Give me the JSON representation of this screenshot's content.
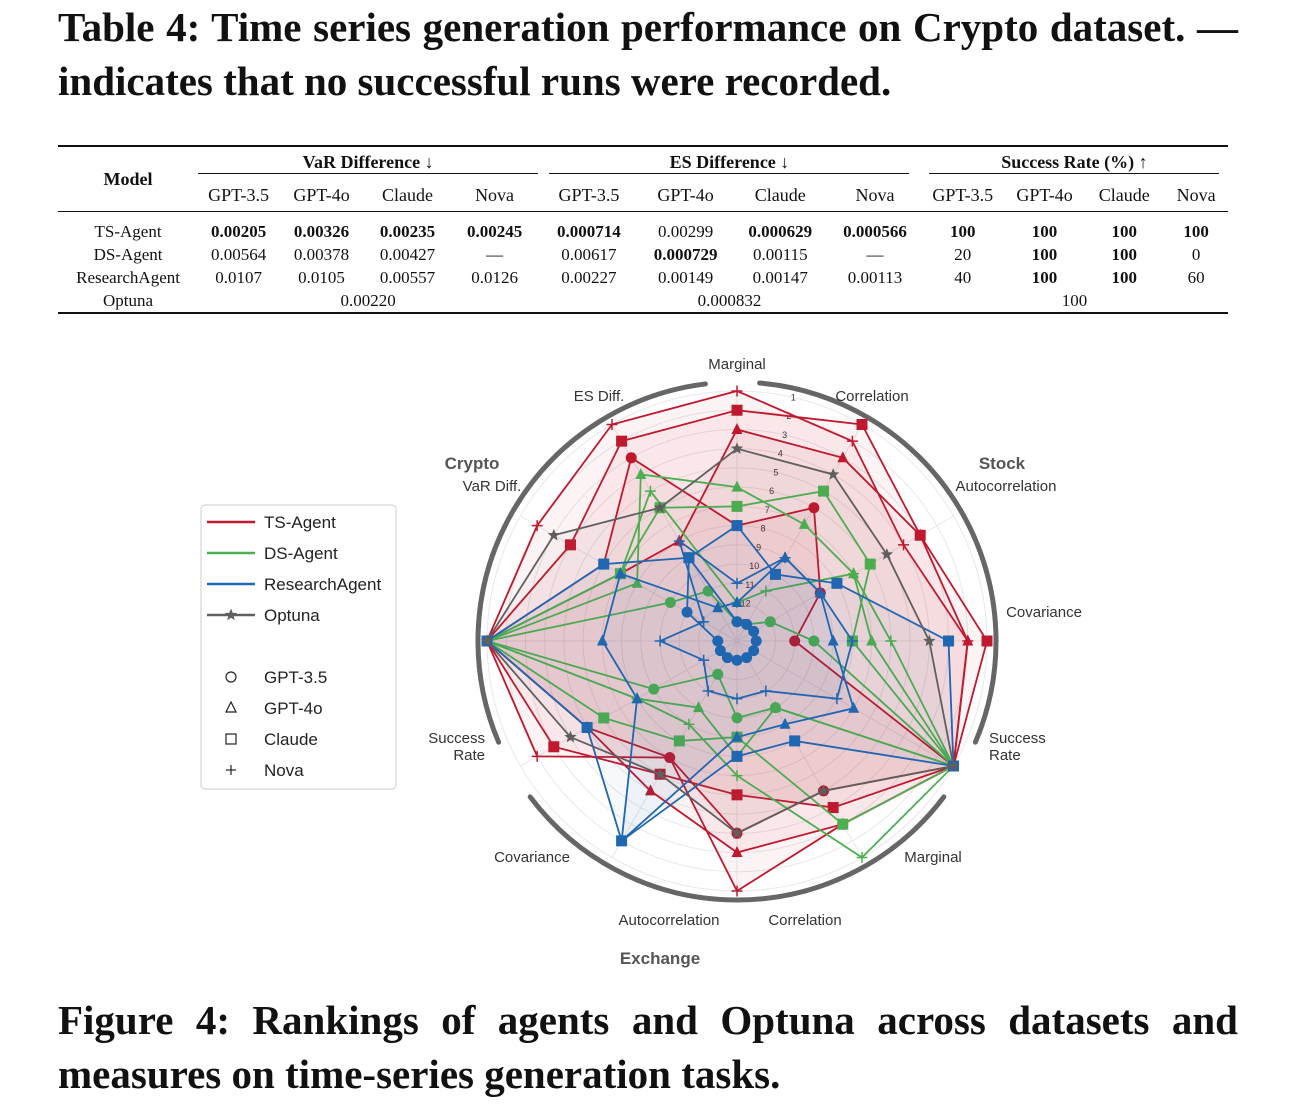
{
  "table_caption": "Table 4: Time series generation performance on Crypto dataset. — indicates that no successful runs were recorded.",
  "table": {
    "model_header": "Model",
    "groups": [
      "VaR Difference ↓",
      "ES Difference ↓",
      "Success Rate (%) ↑"
    ],
    "sub_headers": [
      "GPT-3.5",
      "GPT-4o",
      "Claude",
      "Nova"
    ],
    "rows": [
      {
        "model": "TS-Agent",
        "var": [
          "0.00205",
          "0.00326",
          "0.00235",
          "0.00245"
        ],
        "es": [
          "0.000714",
          "0.00299",
          "0.000629",
          "0.000566"
        ],
        "sr": [
          "100",
          "100",
          "100",
          "100"
        ]
      },
      {
        "model": "DS-Agent",
        "var": [
          "0.00564",
          "0.00378",
          "0.00427",
          "—"
        ],
        "es": [
          "0.00617",
          "0.000729",
          "0.00115",
          "—"
        ],
        "sr": [
          "20",
          "100",
          "100",
          "0"
        ]
      },
      {
        "model": "ResearchAgent",
        "var": [
          "0.0107",
          "0.0105",
          "0.00557",
          "0.0126"
        ],
        "es": [
          "0.00227",
          "0.00149",
          "0.00147",
          "0.00113"
        ],
        "sr": [
          "40",
          "100",
          "100",
          "60"
        ]
      }
    ],
    "optuna": {
      "model": "Optuna",
      "var": "0.00220",
      "es": "0.000832",
      "sr": "100"
    }
  },
  "figure_caption": "Figure 4: Rankings of agents and Optuna across datasets and measures on time-series generation tasks.",
  "chart_data": {
    "type": "radar",
    "rank_ticks": [
      "1",
      "2",
      "3",
      "4",
      "5",
      "6",
      "7",
      "8",
      "9",
      "10",
      "11",
      "12",
      "13"
    ],
    "rank_range": [
      1,
      13
    ],
    "dataset_labels": [
      "Crypto",
      "Stock",
      "Exchange"
    ],
    "axes": [
      "Marginal",
      "Correlation",
      "Autocorrelation",
      "Covariance",
      "Success\nRate",
      "Marginal",
      "Correlation",
      "Autocorrelation",
      "Covariance",
      "Success\nRate",
      "VaR Diff.",
      "ES Diff."
    ],
    "legend": {
      "series": [
        "TS-Agent",
        "DS-Agent",
        "ResearchAgent",
        "Optuna"
      ],
      "markers": [
        "GPT-3.5",
        "GPT-4o",
        "Claude",
        "Nova"
      ]
    },
    "colors": {
      "TS-Agent": "#c0192f",
      "DS-Agent": "#4caf50",
      "ResearchAgent": "#1f66b3",
      "Optuna": "#5f5f5f"
    },
    "series": [
      {
        "name": "TS-Agent",
        "variant": "GPT-3.5",
        "ranks": [
          8,
          6,
          9,
          11,
          1,
          5,
          4,
          7,
          5,
          1,
          6,
          3
        ]
      },
      {
        "name": "TS-Agent",
        "variant": "GPT-4o",
        "ranks": [
          3,
          3,
          3,
          2,
          1,
          3,
          3,
          5,
          5,
          1,
          7,
          8
        ]
      },
      {
        "name": "TS-Agent",
        "variant": "Claude",
        "ranks": [
          2,
          1,
          3,
          1,
          1,
          4,
          6,
          6,
          3,
          1,
          4,
          2
        ]
      },
      {
        "name": "TS-Agent",
        "variant": "Nova",
        "ranks": [
          1,
          2,
          4,
          2,
          1,
          3,
          1,
          7,
          2,
          1,
          2,
          1
        ]
      },
      {
        "name": "DS-Agent",
        "variant": "GPT-3.5",
        "ranks": [
          13,
          13,
          12,
          10,
          1,
          10,
          10,
          12,
          9,
          1,
          10,
          11
        ]
      },
      {
        "name": "DS-Agent",
        "variant": "GPT-4o",
        "ranks": [
          6,
          7,
          7,
          7,
          1,
          10,
          8,
          10,
          8,
          1,
          8,
          4
        ]
      },
      {
        "name": "DS-Agent",
        "variant": "Claude",
        "ranks": [
          7,
          5,
          6,
          8,
          1,
          3,
          9,
          8,
          6,
          1,
          7,
          6
        ]
      },
      {
        "name": "DS-Agent",
        "variant": "Nova",
        "ranks": [
          12,
          11,
          7,
          6,
          1,
          1,
          7,
          9,
          8,
          1,
          7,
          5
        ]
      },
      {
        "name": "ResearchAgent",
        "variant": "GPT-3.5",
        "ranks": [
          13,
          13,
          13,
          13,
          13,
          13,
          13,
          13,
          13,
          13,
          11,
          9
        ]
      },
      {
        "name": "ResearchAgent",
        "variant": "GPT-4o",
        "ranks": [
          12,
          9,
          9,
          9,
          7,
          9,
          9,
          2,
          8,
          7,
          7,
          12
        ]
      },
      {
        "name": "ResearchAgent",
        "variant": "Claude",
        "ranks": [
          8,
          10,
          8,
          3,
          1,
          8,
          8,
          2,
          5,
          1,
          6,
          9
        ]
      },
      {
        "name": "ResearchAgent",
        "variant": "Nova",
        "ranks": [
          11,
          9,
          9,
          8,
          8,
          11,
          11,
          11,
          12,
          10,
          12,
          8
        ]
      },
      {
        "name": "Optuna",
        "variant": "",
        "ranks": [
          4,
          4,
          5,
          4,
          1,
          5,
          4,
          6,
          4,
          1,
          3,
          6
        ]
      }
    ]
  }
}
